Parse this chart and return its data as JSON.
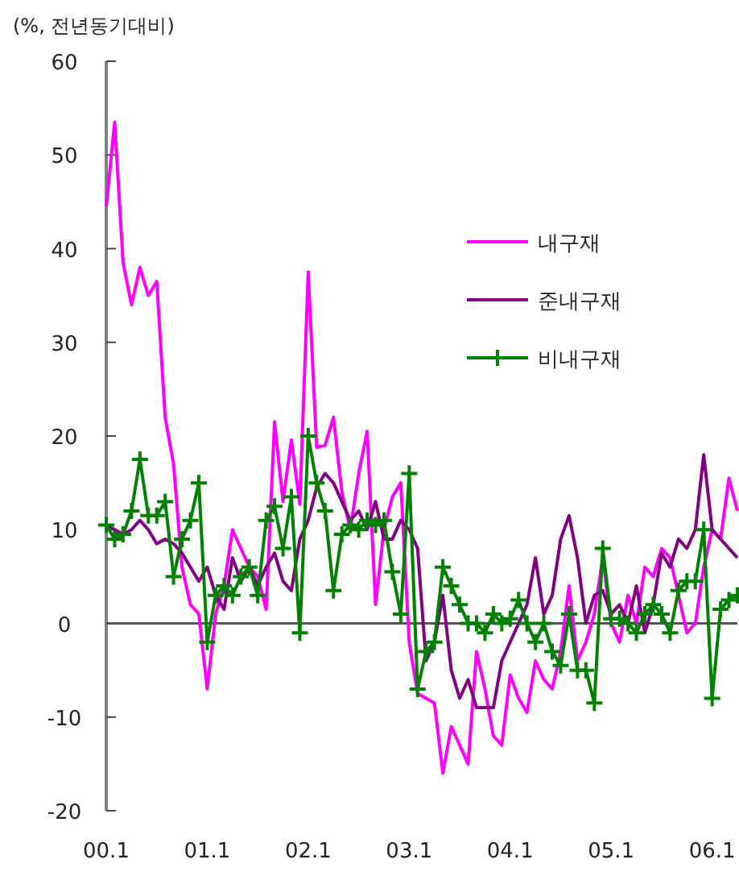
{
  "chart_data": {
    "type": "line",
    "ylabel": "(%, 전년동기대비)",
    "categories": [
      "00.1",
      null,
      null,
      null,
      null,
      null,
      null,
      null,
      null,
      null,
      null,
      null,
      "01.1",
      null,
      null,
      null,
      null,
      null,
      null,
      null,
      null,
      null,
      null,
      null,
      "02.1",
      null,
      null,
      null,
      null,
      null,
      null,
      null,
      null,
      null,
      null,
      null,
      "03.1",
      null,
      null,
      null,
      null,
      null,
      null,
      null,
      null,
      null,
      null,
      null,
      "04.1",
      null,
      null,
      null,
      null,
      null,
      null,
      null,
      null,
      null,
      null,
      null,
      "05.1",
      null,
      null,
      null,
      null,
      null,
      null,
      null,
      null,
      null,
      null,
      null,
      "06.1",
      null,
      null,
      null
    ],
    "ylim": [
      -20,
      60
    ],
    "yticks": [
      -20,
      -10,
      0,
      10,
      20,
      30,
      40,
      50,
      60
    ],
    "ref_lines": [
      {
        "axis": "y",
        "value": 0,
        "color": "#555555"
      }
    ],
    "legend": "right",
    "grid": false,
    "series": [
      {
        "name": "내구재",
        "color": "#ff00ff",
        "marker": "none",
        "values": [
          44.5,
          53.5,
          38.5,
          34,
          38,
          35,
          36.5,
          22,
          17,
          6,
          2,
          1,
          -7,
          1,
          4,
          10,
          8,
          6,
          5,
          1.5,
          21.5,
          13,
          19.6,
          12.7,
          37.5,
          18.8,
          19,
          22,
          14,
          10,
          16,
          20.5,
          2,
          10,
          13.5,
          15,
          -2,
          -7.5,
          -8,
          -8.5,
          -16,
          -11,
          -13,
          -15,
          -3,
          -7,
          -12,
          -13,
          -5.5,
          -8,
          -9.5,
          -4,
          -6,
          -7,
          -3,
          4,
          -4,
          -2,
          1,
          7,
          0,
          -2,
          3,
          0,
          6,
          5,
          8,
          7,
          3,
          -1,
          0,
          6,
          10,
          9,
          15.5,
          12
        ]
      },
      {
        "name": "준내구재",
        "color": "#800080",
        "marker": "none",
        "values": [
          10.5,
          10,
          9.5,
          10,
          11,
          10,
          8.5,
          9,
          8.5,
          7.5,
          6,
          4.5,
          6,
          3,
          1.5,
          7,
          4.5,
          6,
          4,
          6,
          7.5,
          4.5,
          3.5,
          9,
          11,
          14.5,
          16,
          15,
          13,
          11,
          12,
          10,
          13,
          9,
          9,
          11,
          10,
          8,
          -4,
          -2,
          3,
          -5,
          -8,
          -6,
          -9,
          -9,
          -9,
          -4,
          -2,
          0,
          2,
          7,
          1,
          3,
          9,
          11.5,
          7,
          0,
          3,
          3.5,
          1,
          2,
          0,
          4,
          -1,
          2,
          7.5,
          6,
          9,
          8,
          10,
          18,
          10,
          9,
          8,
          7
        ]
      },
      {
        "name": "비내구재",
        "color": "#008000",
        "marker": "cross",
        "values": [
          10.5,
          9,
          9.5,
          12,
          17.5,
          11.5,
          11.5,
          13,
          5,
          9,
          11,
          15,
          -2,
          3,
          4,
          3,
          5,
          6,
          3,
          11,
          12.5,
          8,
          13.5,
          -1,
          20,
          15,
          12,
          3.5,
          9.5,
          10.5,
          10,
          11,
          10.5,
          11,
          5.5,
          1,
          16,
          -7,
          -3,
          -2,
          6,
          4,
          2,
          0,
          0,
          -1,
          1,
          0,
          0.5,
          2.5,
          0,
          -2,
          0,
          -3,
          -4.5,
          1,
          -5,
          -5,
          -8.5,
          8,
          0.5,
          0.5,
          0,
          -1,
          1,
          2,
          1,
          -1,
          3.5,
          4.5,
          4.5,
          10,
          -8,
          1.5,
          2.5,
          3
        ]
      }
    ]
  }
}
